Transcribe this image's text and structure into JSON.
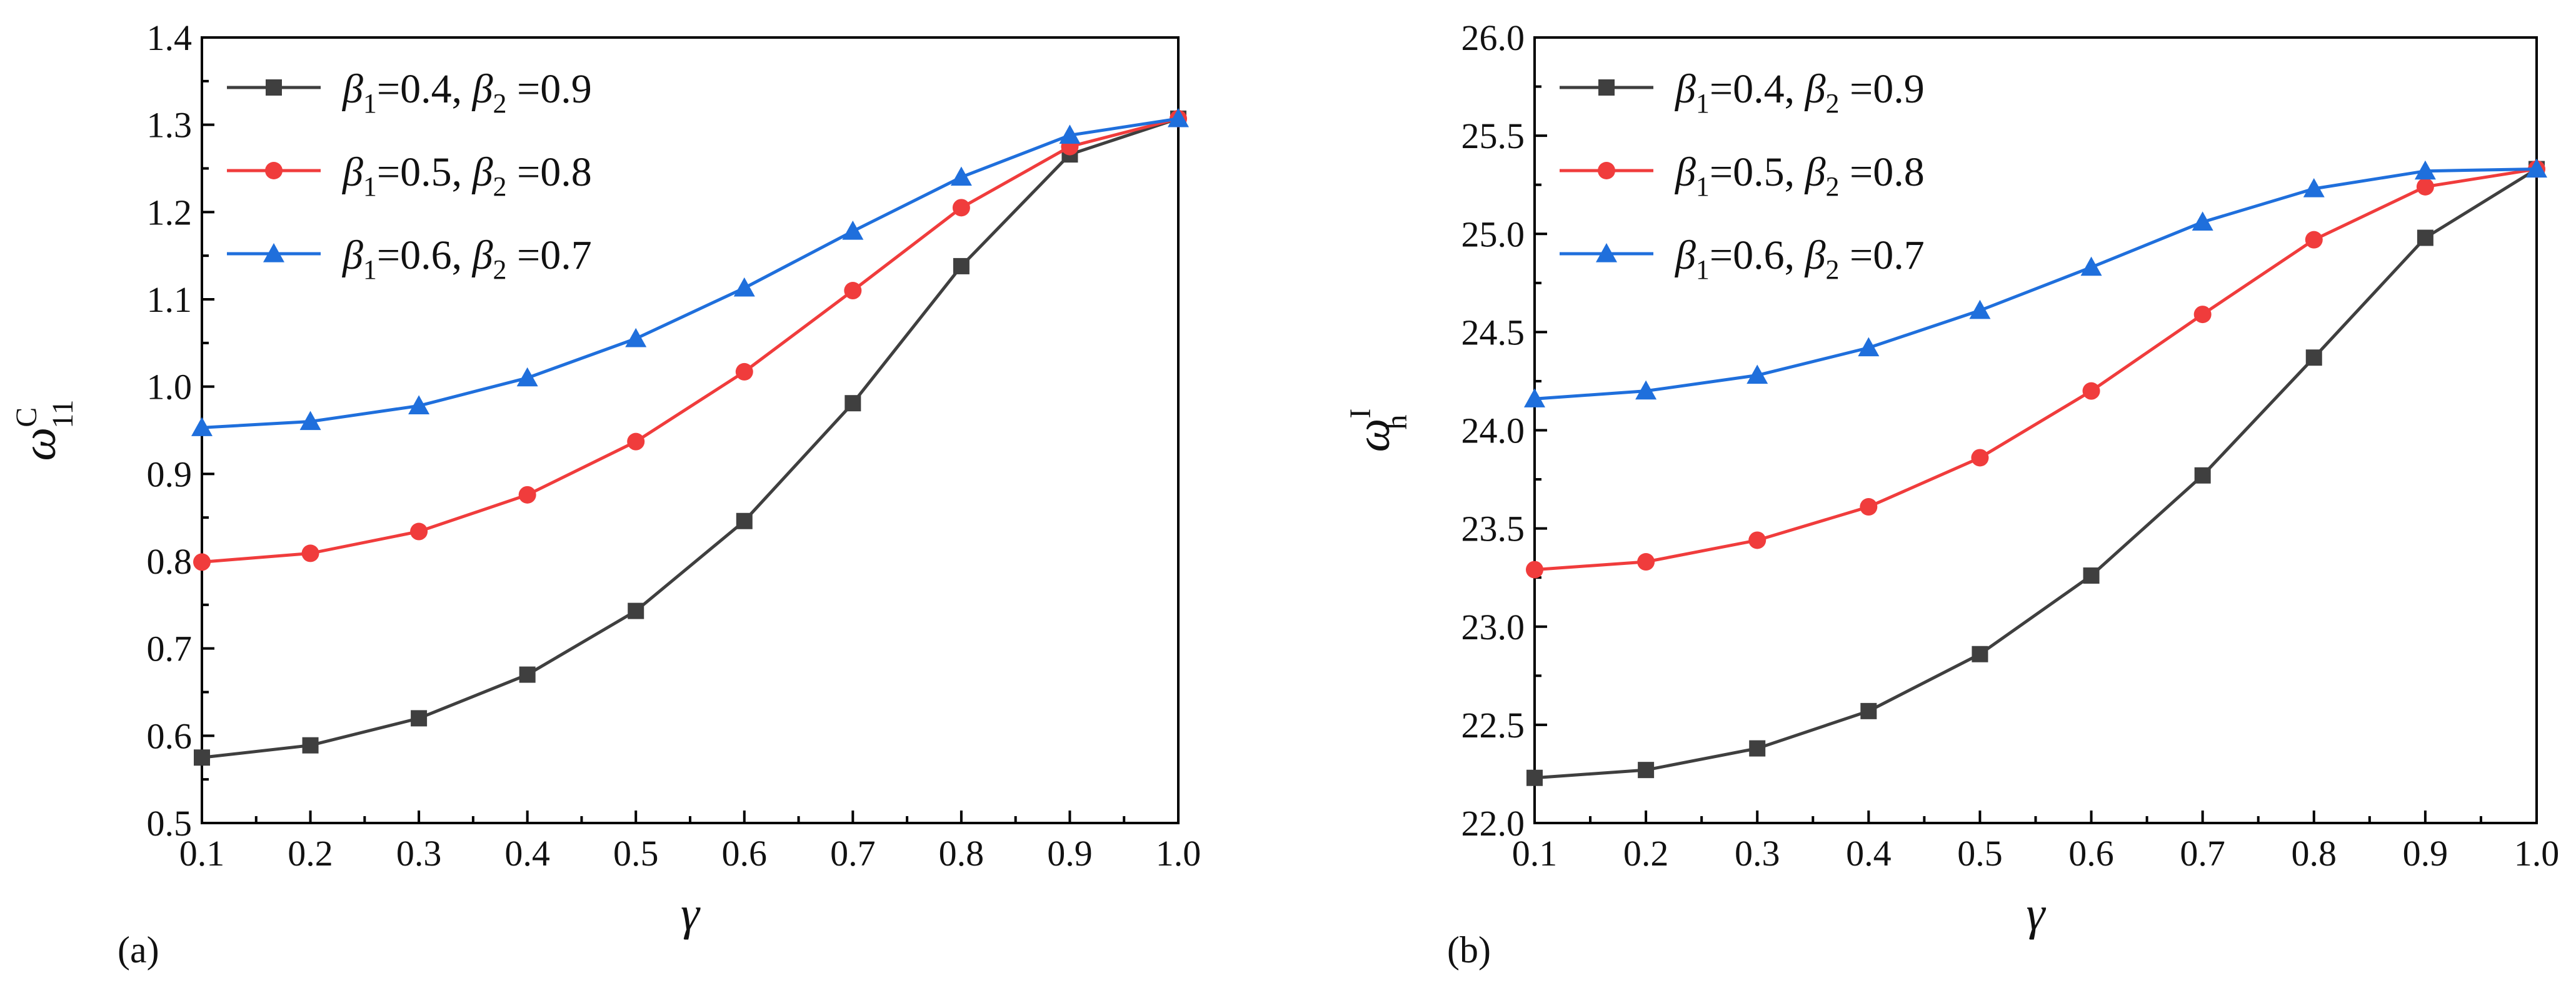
{
  "chart_data": [
    {
      "type": "line",
      "panel_label": "(a)",
      "xlabel": "γ",
      "ylabel": {
        "base": "ω",
        "sup": "C",
        "sub": "11"
      },
      "xlim": [
        0.1,
        1.0
      ],
      "ylim": [
        0.5,
        1.4
      ],
      "x_ticks": [
        "0.1",
        "0.2",
        "0.3",
        "0.4",
        "0.5",
        "0.6",
        "0.7",
        "0.8",
        "0.9",
        "1.0"
      ],
      "y_ticks": [
        "0.5",
        "0.6",
        "0.7",
        "0.8",
        "0.9",
        "1.0",
        "1.1",
        "1.2",
        "1.3",
        "1.4"
      ],
      "legend_position": "top-left",
      "x": [
        0.1,
        0.2,
        0.3,
        0.4,
        0.5,
        0.6,
        0.7,
        0.8,
        0.9,
        1.0
      ],
      "series": [
        {
          "name": "β1=0.4, β2 =0.9",
          "legend": {
            "b1": "0.4",
            "b2": "0.9"
          },
          "color": "#3f3f3f",
          "marker": "square",
          "values": [
            0.575,
            0.589,
            0.62,
            0.67,
            0.743,
            0.846,
            0.981,
            1.138,
            1.266,
            1.307
          ]
        },
        {
          "name": "β1=0.5, β2 =0.8",
          "legend": {
            "b1": "0.5",
            "b2": "0.8"
          },
          "color": "#f03c3c",
          "marker": "circle",
          "values": [
            0.799,
            0.809,
            0.834,
            0.876,
            0.937,
            1.017,
            1.11,
            1.205,
            1.275,
            1.307
          ]
        },
        {
          "name": "β1=0.6, β2 =0.7",
          "legend": {
            "b1": "0.6",
            "b2": "0.7"
          },
          "color": "#1f6fdc",
          "marker": "triangle",
          "values": [
            0.953,
            0.96,
            0.978,
            1.01,
            1.055,
            1.113,
            1.178,
            1.24,
            1.288,
            1.307
          ]
        }
      ]
    },
    {
      "type": "line",
      "panel_label": "(b)",
      "xlabel": "γ",
      "ylabel": {
        "base": "ω",
        "sup": "I",
        "sub": "h"
      },
      "xlim": [
        0.1,
        1.0
      ],
      "ylim": [
        22.0,
        26.0
      ],
      "x_ticks": [
        "0.1",
        "0.2",
        "0.3",
        "0.4",
        "0.5",
        "0.6",
        "0.7",
        "0.8",
        "0.9",
        "1.0"
      ],
      "y_ticks": [
        "22.0",
        "22.5",
        "23.0",
        "23.5",
        "24.0",
        "24.5",
        "25.0",
        "25.5",
        "26.0"
      ],
      "legend_position": "top-left",
      "x": [
        0.1,
        0.2,
        0.3,
        0.4,
        0.5,
        0.6,
        0.7,
        0.8,
        0.9,
        1.0
      ],
      "series": [
        {
          "name": "β1=0.4, β2 =0.9",
          "legend": {
            "b1": "0.4",
            "b2": "0.9"
          },
          "color": "#3f3f3f",
          "marker": "square",
          "values": [
            22.23,
            22.27,
            22.38,
            22.57,
            22.86,
            23.26,
            23.77,
            24.37,
            24.98,
            25.33
          ]
        },
        {
          "name": "β1=0.5, β2 =0.8",
          "legend": {
            "b1": "0.5",
            "b2": "0.8"
          },
          "color": "#f03c3c",
          "marker": "circle",
          "values": [
            23.29,
            23.33,
            23.44,
            23.61,
            23.86,
            24.2,
            24.59,
            24.97,
            25.24,
            25.33
          ]
        },
        {
          "name": "β1=0.6, β2 =0.7",
          "legend": {
            "b1": "0.6",
            "b2": "0.7"
          },
          "color": "#1f6fdc",
          "marker": "triangle",
          "values": [
            24.16,
            24.2,
            24.28,
            24.42,
            24.61,
            24.83,
            25.06,
            25.23,
            25.32,
            25.33
          ]
        }
      ]
    }
  ]
}
